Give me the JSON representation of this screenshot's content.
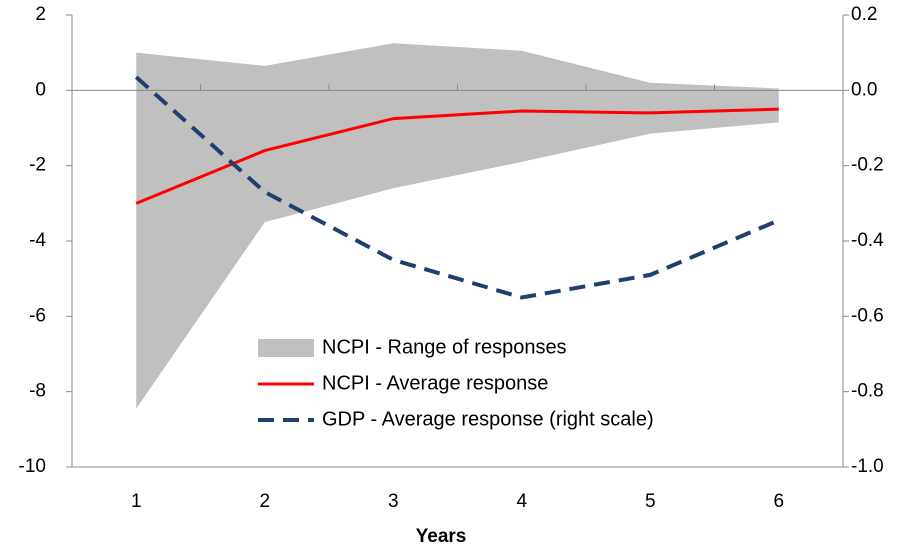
{
  "chart_data": {
    "type": "line",
    "x_label": "Years",
    "categories": [
      "1",
      "2",
      "3",
      "4",
      "5",
      "6"
    ],
    "ylim": [
      -10,
      2
    ],
    "yticks": [
      2,
      0,
      -2,
      -4,
      -6,
      -8,
      -10
    ],
    "y2lim": [
      -1,
      0.2
    ],
    "y2ticks": [
      0.2,
      {
        "value": 0,
        "label": "0.0"
      },
      -0.2,
      -0.4,
      -0.6,
      -0.8,
      {
        "value": -1,
        "label": "-1.0"
      }
    ],
    "series": [
      {
        "name": "NCPI - Range of responses",
        "color": "#c0c0c0",
        "style": "range",
        "high": [
          1.0,
          0.65,
          1.25,
          1.05,
          0.2,
          0.05
        ],
        "low": [
          -8.45,
          -3.5,
          -2.6,
          -1.9,
          -1.15,
          -0.85
        ]
      },
      {
        "name": "NCPI - Average response",
        "color": "#ff0000",
        "style": "solid",
        "values": [
          -3.0,
          -1.6,
          -0.75,
          -0.55,
          -0.6,
          -0.5
        ]
      },
      {
        "name": "GDP - Average response (right scale)",
        "color": "#1f3f6e",
        "style": "dashed",
        "axis": "y2",
        "values": [
          0.035,
          -0.27,
          -0.45,
          -0.55,
          -0.49,
          -0.345
        ]
      }
    ]
  }
}
